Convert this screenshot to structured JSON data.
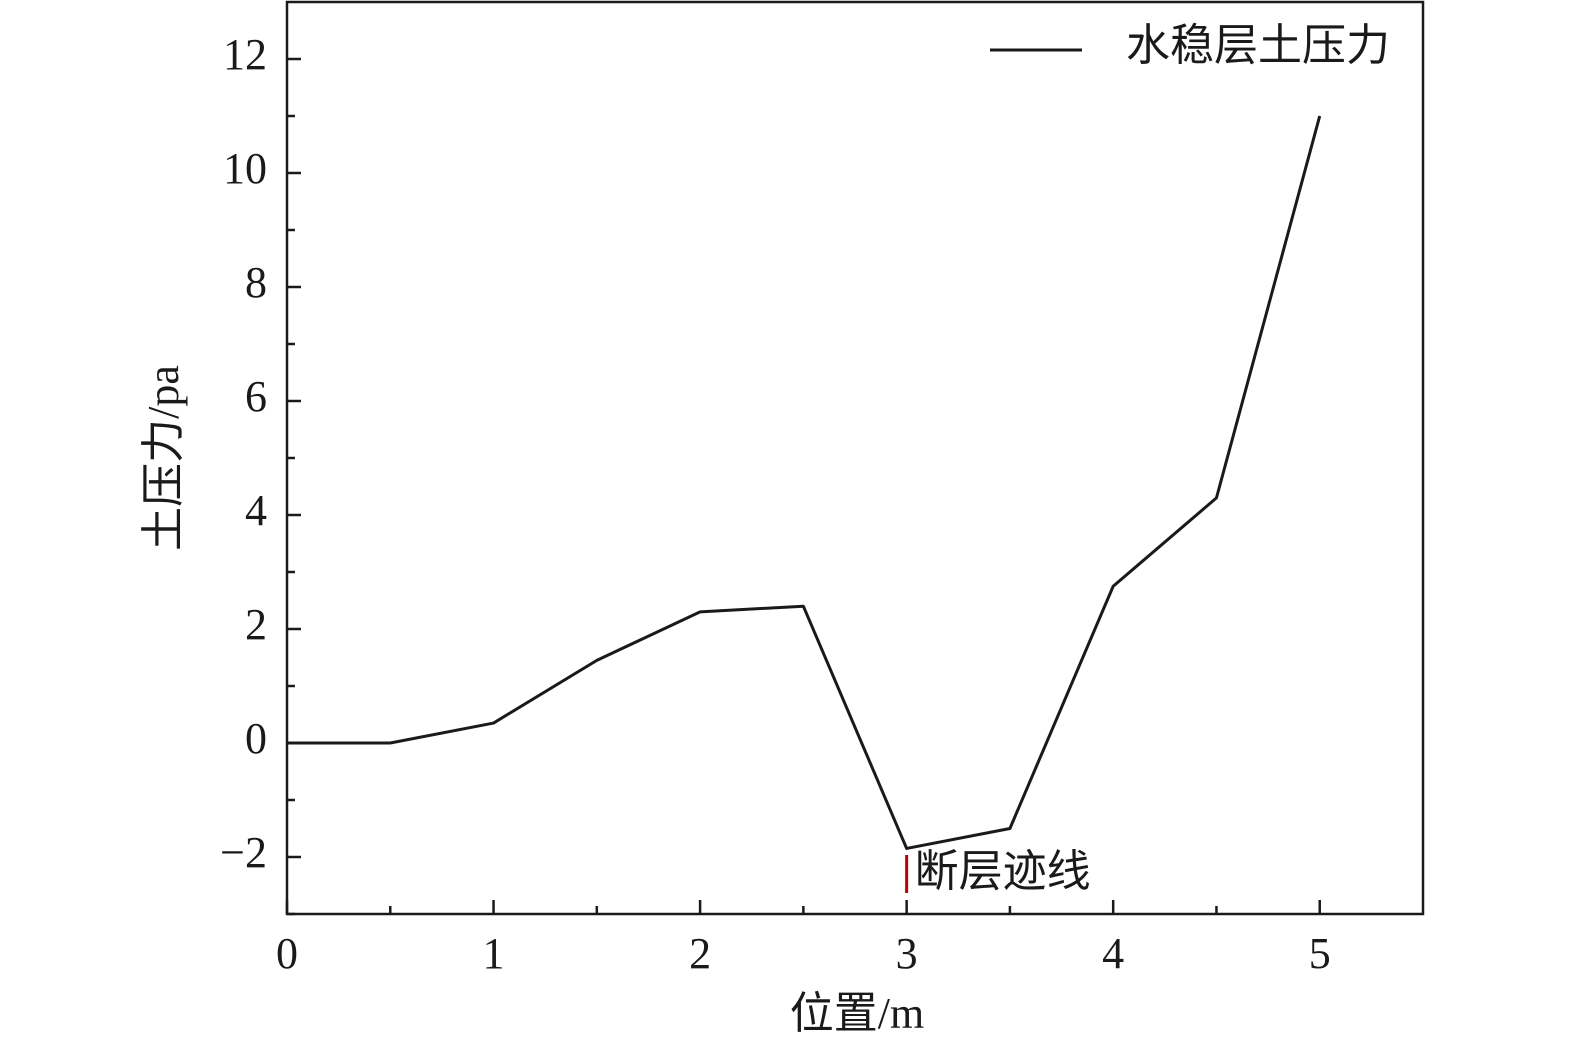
{
  "chart_data": {
    "type": "line",
    "xlabel": "位置/m",
    "ylabel": "土压力/pa",
    "x": [
      0,
      0.5,
      1,
      1.5,
      2,
      2.5,
      3,
      3.5,
      4,
      4.5,
      5
    ],
    "series": [
      {
        "name": "水稳层土压力",
        "color": "#1a1a1a",
        "values": [
          0,
          0,
          0.35,
          1.45,
          2.3,
          2.4,
          -1.85,
          -1.5,
          2.75,
          4.3,
          11.0
        ]
      }
    ],
    "xlim": [
      0,
      5.5
    ],
    "xticks": [
      0,
      1,
      2,
      3,
      4,
      5
    ],
    "xminorticks": [
      0.5,
      1.5,
      2.5,
      3.5,
      4.5
    ],
    "ylim": [
      -3,
      13
    ],
    "yticks": [
      {
        "value": -2,
        "label": "−2"
      },
      0,
      2,
      4,
      6,
      8,
      10,
      12
    ],
    "yminorticks": [
      -3,
      -1,
      1,
      3,
      5,
      7,
      9,
      11
    ],
    "legend": "upper right",
    "annotations": [
      {
        "text": "断层迹线",
        "x": 3,
        "color": "#c00000"
      }
    ]
  }
}
